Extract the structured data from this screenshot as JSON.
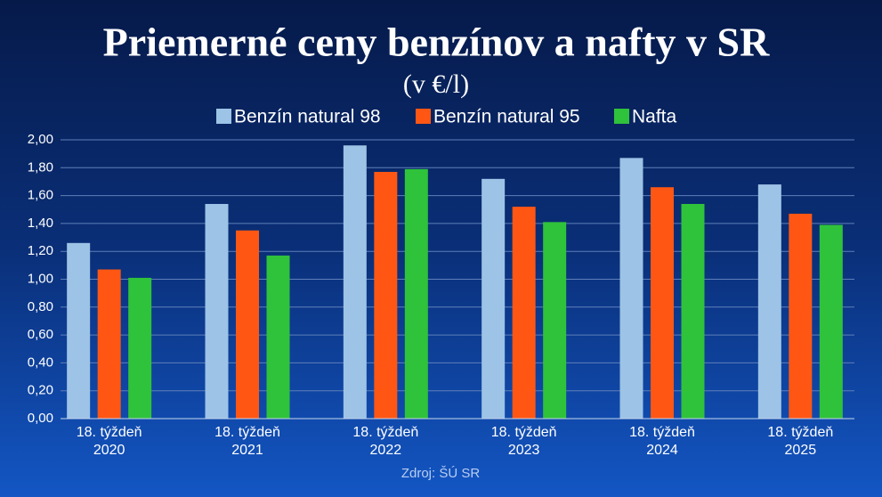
{
  "chart_data": {
    "type": "bar",
    "title": "Priemerné ceny benzínov a nafty v SR",
    "subtitle": "(v €/l)",
    "source": "Zdroj: ŠÚ SR",
    "categories": [
      [
        "18. týždeň",
        "2020"
      ],
      [
        "18. týždeň",
        "2021"
      ],
      [
        "18. týždeň",
        "2022"
      ],
      [
        "18. týždeň",
        "2023"
      ],
      [
        "18. týždeň",
        "2024"
      ],
      [
        "18. týždeň",
        "2025"
      ]
    ],
    "series": [
      {
        "name": "Benzín natural 98",
        "color": "#9dc3e6",
        "values": [
          1.26,
          1.54,
          1.96,
          1.72,
          1.87,
          1.68
        ]
      },
      {
        "name": "Benzín natural 95",
        "color": "#ff5713",
        "values": [
          1.07,
          1.35,
          1.77,
          1.52,
          1.66,
          1.47
        ]
      },
      {
        "name": "Nafta",
        "color": "#2fc23b",
        "values": [
          1.01,
          1.17,
          1.79,
          1.41,
          1.54,
          1.39
        ]
      }
    ],
    "ylim": [
      0,
      2
    ],
    "yticks": [
      {
        "value": 0,
        "label": "0,00"
      },
      {
        "value": 0.2,
        "label": "0,20"
      },
      {
        "value": 0.4,
        "label": "0,40"
      },
      {
        "value": 0.6,
        "label": "0,60"
      },
      {
        "value": 0.8,
        "label": "0,80"
      },
      {
        "value": 1,
        "label": "1,00"
      },
      {
        "value": 1.2,
        "label": "1,20"
      },
      {
        "value": 1.4,
        "label": "1,40"
      },
      {
        "value": 1.6,
        "label": "1,60"
      },
      {
        "value": 1.8,
        "label": "1,80"
      },
      {
        "value": 2,
        "label": "2,00"
      }
    ],
    "grid": true,
    "legend": "top"
  }
}
